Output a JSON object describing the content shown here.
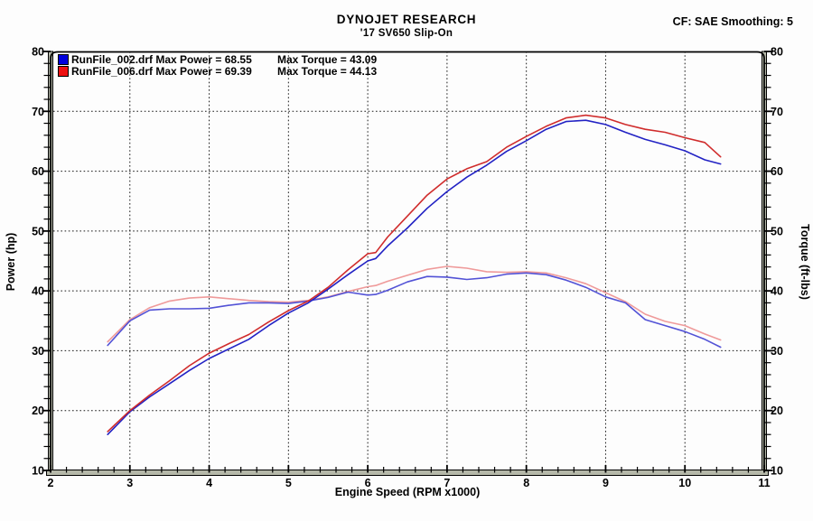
{
  "header": {
    "title": "DYNOJET RESEARCH",
    "subtitle": "'17 SV650 Slip-On",
    "correction_info": "CF: SAE  Smoothing: 5"
  },
  "legend": [
    {
      "file": "RunFile_002.drf",
      "left_label": "RunFile_002.drf Max Power = 68.55",
      "right_label": "Max Torque = 43.09",
      "color": "#0000dd"
    },
    {
      "file": "RunFile_006.drf",
      "left_label": "RunFile_006.drf Max Power = 69.39",
      "right_label": "Max Torque = 44.13",
      "color": "#ee1111"
    }
  ],
  "chart_data": {
    "type": "line",
    "title": "DYNOJET RESEARCH",
    "subtitle": "'17 SV650 Slip-On",
    "xlabel": "Engine Speed (RPM x1000)",
    "ylabel_left": "Power (hp)",
    "ylabel_right": "Torque (ft-lbs)",
    "xlim": [
      2,
      11
    ],
    "ylim": [
      10,
      80
    ],
    "x_major_ticks": [
      2,
      3,
      4,
      5,
      6,
      7,
      8,
      9,
      10,
      11
    ],
    "y_major_ticks": [
      10,
      20,
      30,
      40,
      50,
      60,
      70,
      80
    ],
    "x_minor_step": 0.2,
    "y_minor_step": 2,
    "grid": "dotted-major",
    "legend_position": "top-left",
    "x": [
      2.72,
      3.0,
      3.25,
      3.5,
      3.75,
      4.0,
      4.25,
      4.5,
      4.75,
      5.0,
      5.25,
      5.5,
      5.75,
      6.0,
      6.1,
      6.25,
      6.5,
      6.75,
      7.0,
      7.25,
      7.5,
      7.75,
      8.0,
      8.25,
      8.5,
      8.75,
      9.0,
      9.25,
      9.5,
      9.75,
      10.0,
      10.25,
      10.45
    ],
    "series": [
      {
        "name": "RunFile_006.drf Torque (ft-lbs)",
        "axis": "right",
        "color": "#ef9a9a",
        "max": 44.13,
        "values": [
          31.5,
          35.2,
          37.2,
          38.3,
          38.8,
          39.0,
          38.7,
          38.4,
          38.2,
          38.1,
          38.4,
          39.0,
          39.9,
          40.7,
          40.9,
          41.6,
          42.6,
          43.6,
          44.1,
          43.8,
          43.2,
          43.1,
          43.2,
          43.0,
          42.2,
          41.2,
          39.7,
          38.2,
          36.1,
          34.9,
          34.2,
          32.8,
          31.8
        ]
      },
      {
        "name": "RunFile_002.drf Torque (ft-lbs)",
        "axis": "right",
        "color": "#5252d6",
        "max": 43.09,
        "values": [
          30.9,
          35.0,
          36.8,
          37.0,
          37.0,
          37.1,
          37.6,
          38.0,
          38.0,
          37.9,
          38.3,
          38.9,
          39.8,
          39.3,
          39.4,
          40.1,
          41.5,
          42.4,
          42.3,
          41.9,
          42.2,
          42.8,
          43.0,
          42.7,
          41.8,
          40.6,
          39.0,
          38.0,
          35.2,
          34.2,
          33.2,
          31.9,
          30.6
        ]
      },
      {
        "name": "RunFile_002.drf Power (hp)",
        "axis": "left",
        "color": "#2222c4",
        "max": 68.55,
        "values": [
          16.0,
          19.8,
          22.3,
          24.5,
          26.7,
          28.7,
          30.3,
          31.9,
          34.2,
          36.3,
          38.0,
          40.3,
          42.7,
          45.0,
          45.4,
          47.5,
          50.5,
          53.8,
          56.6,
          59.0,
          61.0,
          63.3,
          65.1,
          67.0,
          68.3,
          68.5,
          67.8,
          66.5,
          65.3,
          64.4,
          63.4,
          61.9,
          61.2
        ]
      },
      {
        "name": "RunFile_006.drf Power (hp)",
        "axis": "left",
        "color": "#d02c2c",
        "max": 69.39,
        "values": [
          16.5,
          20.0,
          22.6,
          25.0,
          27.5,
          29.6,
          31.2,
          32.7,
          34.8,
          36.7,
          38.3,
          40.6,
          43.5,
          46.2,
          46.4,
          49.0,
          52.5,
          56.0,
          58.7,
          60.4,
          61.6,
          64.0,
          65.8,
          67.5,
          68.9,
          69.35,
          68.9,
          67.8,
          67.0,
          66.5,
          65.6,
          64.8,
          62.4
        ]
      }
    ],
    "frame_color": "#000000",
    "spine_fill": "#b5b8a9"
  }
}
